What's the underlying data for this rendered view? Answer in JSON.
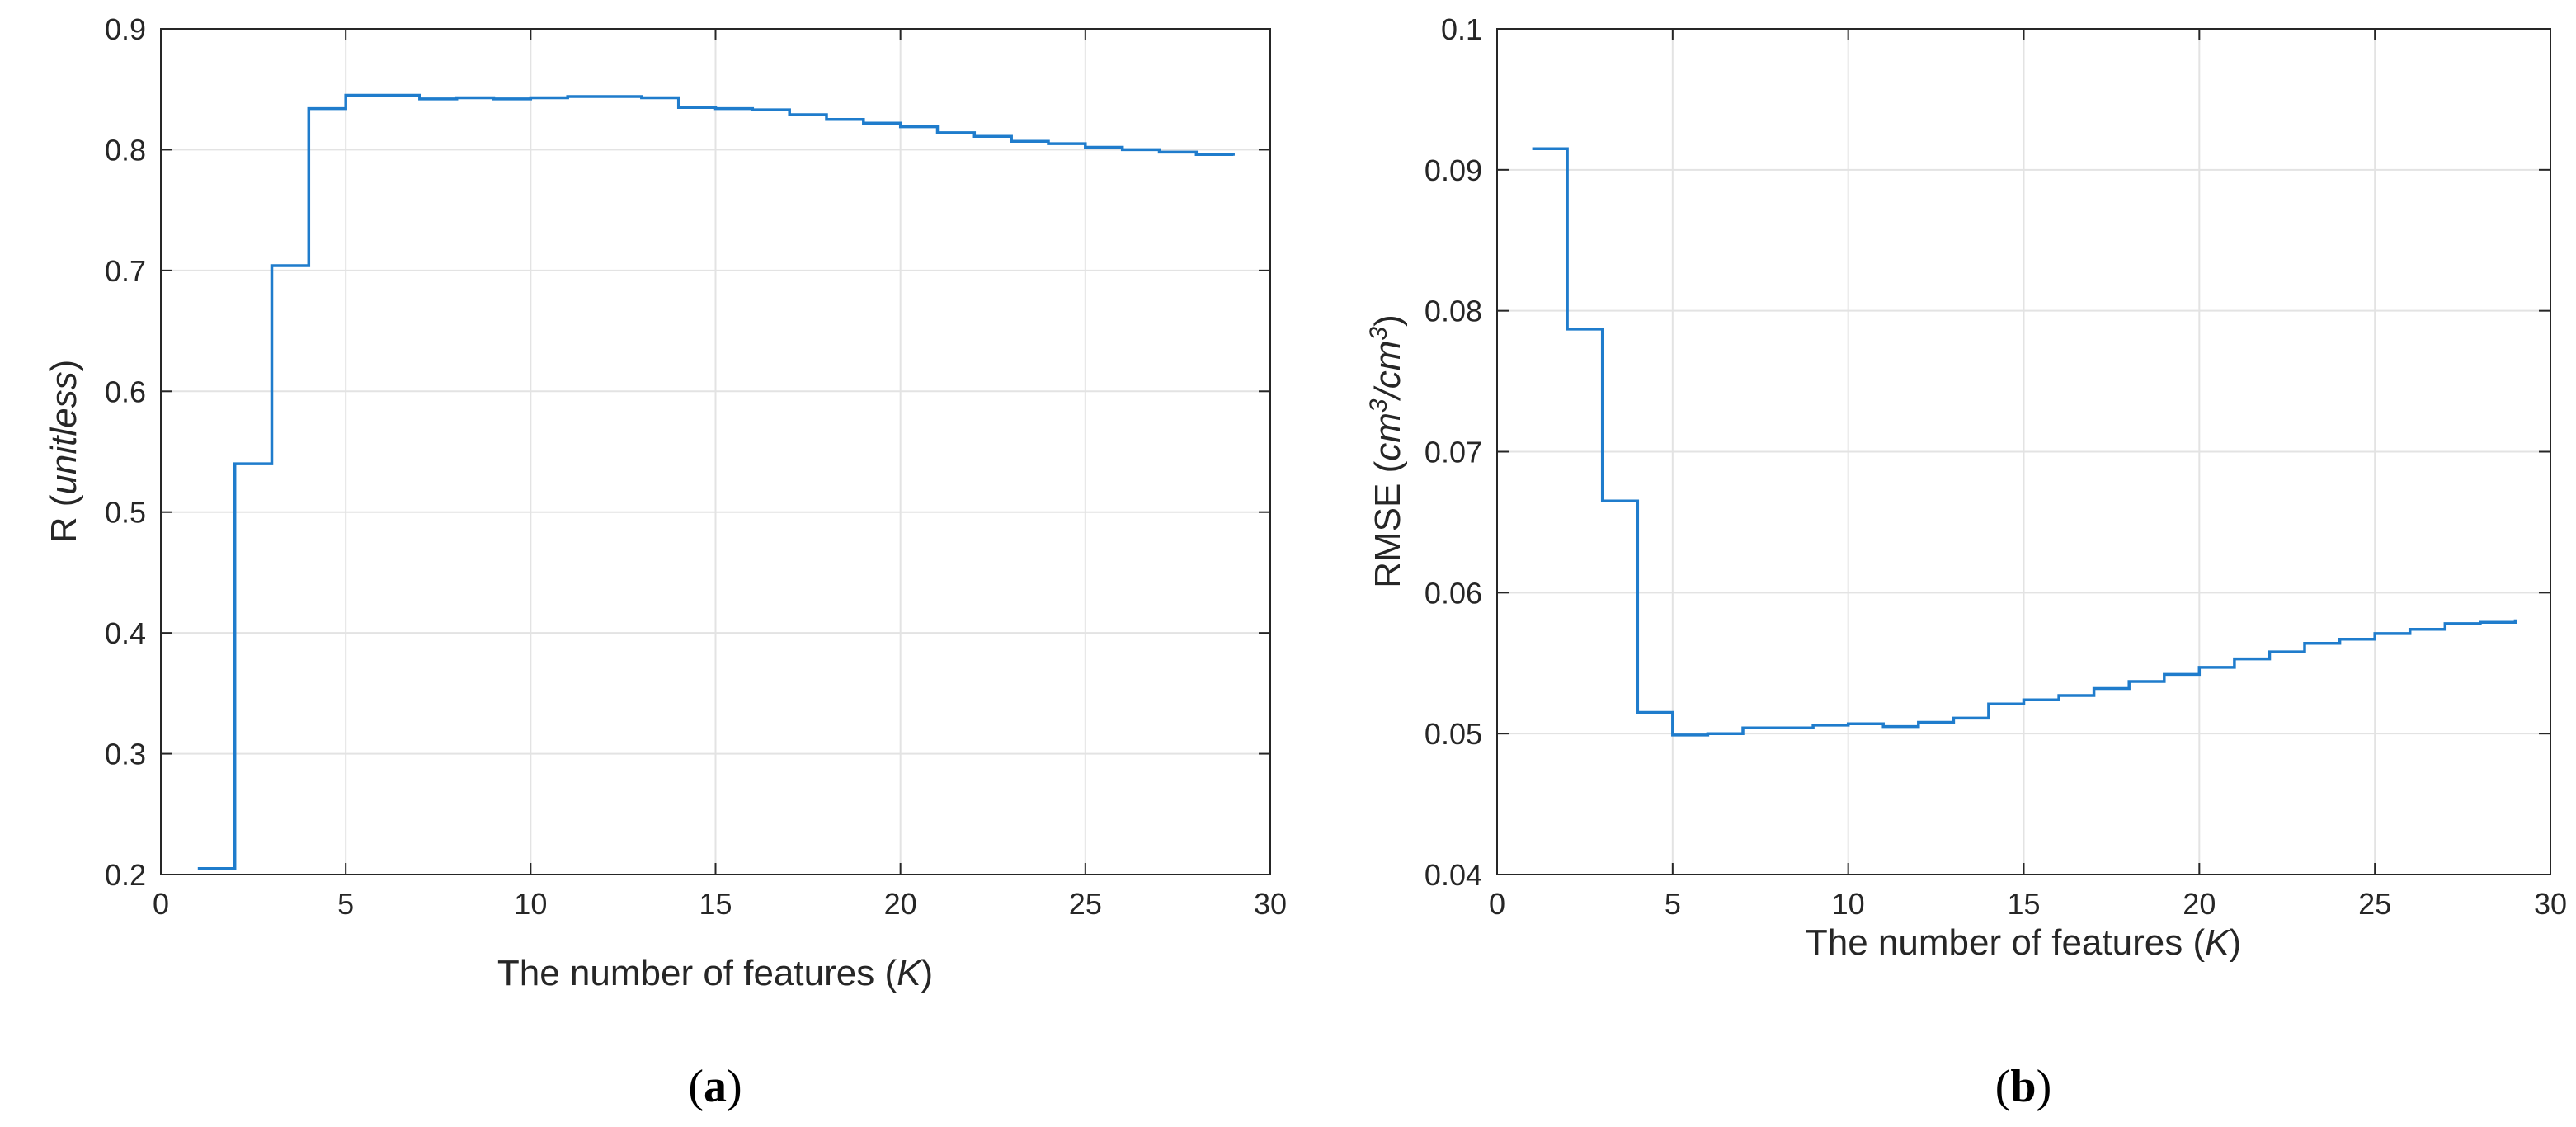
{
  "chart_data": [
    {
      "type": "line",
      "panel_label": "a",
      "title": "",
      "xlabel_text": "The number of features (",
      "xlabel_var": "K",
      "xlabel_end": ")",
      "ylabel_text": "R (",
      "ylabel_unit": "unitless",
      "ylabel_end": ")",
      "xlim": [
        0,
        30
      ],
      "ylim": [
        0.2,
        0.9
      ],
      "xticks": [
        0,
        5,
        10,
        15,
        20,
        25,
        30
      ],
      "yticks": [
        0.2,
        0.3,
        0.4,
        0.5,
        0.6,
        0.7,
        0.8,
        0.9
      ],
      "xtick_labels": [
        "0",
        "5",
        "10",
        "15",
        "20",
        "25",
        "30"
      ],
      "ytick_labels": [
        "0.2",
        "0.3",
        "0.4",
        "0.5",
        "0.6",
        "0.7",
        "0.8",
        "0.9"
      ],
      "grid": true,
      "step": "post",
      "line_color": "#1f7ccc",
      "series": [
        {
          "x": [
            1,
            2,
            3,
            4,
            5,
            6,
            7,
            8,
            9,
            10,
            11,
            12,
            13,
            14,
            15,
            16,
            17,
            18,
            19,
            20,
            21,
            22,
            23,
            24,
            25,
            26,
            27,
            28,
            29
          ],
          "values": [
            0.205,
            0.54,
            0.704,
            0.834,
            0.845,
            0.845,
            0.842,
            0.843,
            0.842,
            0.843,
            0.844,
            0.844,
            0.843,
            0.835,
            0.834,
            0.833,
            0.829,
            0.825,
            0.822,
            0.819,
            0.814,
            0.811,
            0.807,
            0.805,
            0.802,
            0.8,
            0.798,
            0.796,
            0.795
          ]
        }
      ]
    },
    {
      "type": "line",
      "panel_label": "b",
      "title": "",
      "xlabel_text": "The number of features (",
      "xlabel_var": "K",
      "xlabel_end": ")",
      "ylabel_text": "RMSE (",
      "ylabel_unit_a": "cm",
      "ylabel_sup_a": "3",
      "ylabel_unit_b": "/cm",
      "ylabel_sup_b": "3",
      "ylabel_end": ")",
      "xlim": [
        0,
        30
      ],
      "ylim": [
        0.04,
        0.1
      ],
      "xticks": [
        0,
        5,
        10,
        15,
        20,
        25,
        30
      ],
      "yticks": [
        0.04,
        0.05,
        0.06,
        0.07,
        0.08,
        0.09,
        0.1
      ],
      "xtick_labels": [
        "0",
        "5",
        "10",
        "15",
        "20",
        "25",
        "30"
      ],
      "ytick_labels": [
        "0.04",
        "0.05",
        "0.06",
        "0.07",
        "0.08",
        "0.09",
        "0.1"
      ],
      "grid": true,
      "step": "post",
      "line_color": "#1f7ccc",
      "series": [
        {
          "x": [
            1,
            2,
            3,
            4,
            5,
            6,
            7,
            8,
            9,
            10,
            11,
            12,
            13,
            14,
            15,
            16,
            17,
            18,
            19,
            20,
            21,
            22,
            23,
            24,
            25,
            26,
            27,
            28,
            29
          ],
          "values": [
            0.0915,
            0.0787,
            0.0665,
            0.0515,
            0.0499,
            0.05,
            0.0504,
            0.0504,
            0.0506,
            0.0507,
            0.0505,
            0.0508,
            0.0511,
            0.0521,
            0.0524,
            0.0527,
            0.0532,
            0.0537,
            0.0542,
            0.0547,
            0.0553,
            0.0558,
            0.0564,
            0.0567,
            0.0571,
            0.0574,
            0.0578,
            0.0579,
            0.0581
          ]
        }
      ]
    }
  ]
}
